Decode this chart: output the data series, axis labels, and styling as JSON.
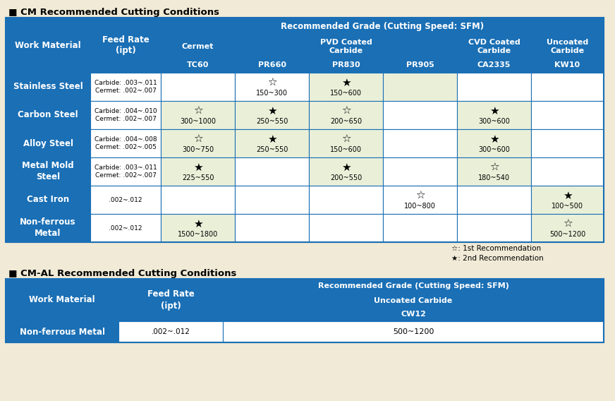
{
  "bg_color": "#f0ead6",
  "title1": "■ CM Recommended Cutting Conditions",
  "title2": "■ CM-AL Recommended Cutting Conditions",
  "blue": "#1a6fb5",
  "white": "#ffffff",
  "cell_white": "#ffffff",
  "highlight": "#eaf0d8",
  "border": "#1a6fb5",
  "legend": [
    "☆: 1st Recommendation",
    "★: 2nd Recommendation"
  ],
  "cm_rows": [
    {
      "material": "Stainless Steel",
      "feed": "Carbide: .003~.011\nCermet: .002~.007",
      "TC60": "",
      "PR660": "☆\n150~300",
      "PR830": "★\n150~600",
      "PR905": "",
      "CA2335": "",
      "KW10": "",
      "hl": [
        false,
        false,
        true,
        true,
        false,
        false
      ]
    },
    {
      "material": "Carbon Steel",
      "feed": "Carbide: .004~.010\nCermet: .002~.007",
      "TC60": "☆\n300~1000",
      "PR660": "★\n250~550",
      "PR830": "☆\n200~650",
      "PR905": "",
      "CA2335": "★\n300~600",
      "KW10": "",
      "hl": [
        true,
        true,
        true,
        false,
        true,
        false
      ]
    },
    {
      "material": "Alloy Steel",
      "feed": "Carbide: .004~.008\nCermet: .002~.005",
      "TC60": "☆\n300~750",
      "PR660": "★\n250~550",
      "PR830": "☆\n150~600",
      "PR905": "",
      "CA2335": "★\n300~600",
      "KW10": "",
      "hl": [
        true,
        true,
        true,
        false,
        true,
        false
      ]
    },
    {
      "material": "Metal Mold\nSteel",
      "feed": "Carbide: .003~.011\nCermet: .002~.007",
      "TC60": "★\n225~550",
      "PR660": "",
      "PR830": "★\n200~550",
      "PR905": "",
      "CA2335": "☆\n180~540",
      "KW10": "",
      "hl": [
        true,
        false,
        true,
        false,
        true,
        false
      ]
    },
    {
      "material": "Cast Iron",
      "feed": ".002~.012",
      "TC60": "",
      "PR660": "",
      "PR830": "",
      "PR905": "☆\n100~800",
      "CA2335": "",
      "KW10": "★\n100~500",
      "hl": [
        false,
        false,
        false,
        false,
        false,
        true
      ]
    },
    {
      "material": "Non-ferrous\nMetal",
      "feed": ".002~.012",
      "TC60": "★\n1500~1800",
      "PR660": "",
      "PR830": "",
      "PR905": "",
      "CA2335": "",
      "KW10": "☆\n500~1200",
      "hl": [
        true,
        false,
        false,
        false,
        false,
        true
      ]
    }
  ]
}
